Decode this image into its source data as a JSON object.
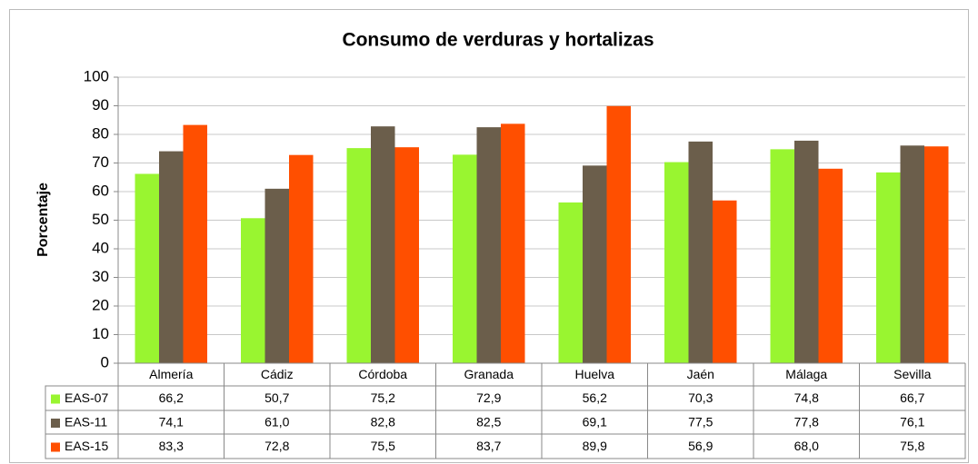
{
  "chart_data": {
    "type": "bar",
    "title": "Consumo de verduras y hortalizas",
    "y_label": "Porcentaje",
    "categories": [
      "Almería",
      "Cádiz",
      "Córdoba",
      "Granada",
      "Huelva",
      "Jaén",
      "Málaga",
      "Sevilla"
    ],
    "series": [
      {
        "name": "EAS-07",
        "color": "#99f530",
        "values": [
          66.2,
          50.7,
          75.2,
          72.9,
          56.2,
          70.3,
          74.8,
          66.7
        ],
        "value_labels": [
          "66,2",
          "50,7",
          "75,2",
          "72,9",
          "56,2",
          "70,3",
          "74,8",
          "66,7"
        ]
      },
      {
        "name": "EAS-11",
        "color": "#6b5e4b",
        "values": [
          74.1,
          61.0,
          82.8,
          82.5,
          69.1,
          77.5,
          77.8,
          76.1
        ],
        "value_labels": [
          "74,1",
          "61,0",
          "82,8",
          "82,5",
          "69,1",
          "77,5",
          "77,8",
          "76,1"
        ]
      },
      {
        "name": "EAS-15",
        "color": "#ff4f00",
        "values": [
          83.3,
          72.8,
          75.5,
          83.7,
          89.9,
          56.9,
          68.0,
          75.8
        ],
        "value_labels": [
          "83,3",
          "72,8",
          "75,5",
          "83,7",
          "89,9",
          "56,9",
          "68,0",
          "75,8"
        ]
      }
    ],
    "ylim": [
      0,
      100
    ],
    "yticks": [
      0,
      10,
      20,
      30,
      40,
      50,
      60,
      70,
      80,
      90,
      100
    ],
    "grid": true
  }
}
